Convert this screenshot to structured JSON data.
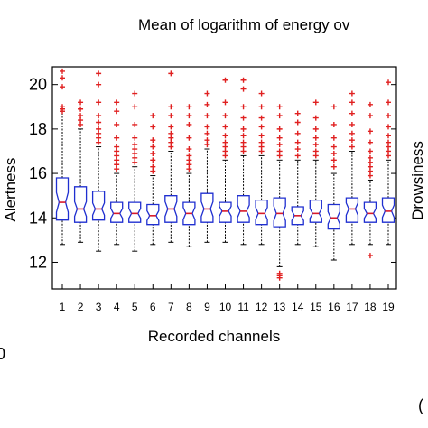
{
  "chart_data": {
    "type": "box",
    "title": "Mean of logarithm of energy ov",
    "xlabel": "Recorded channels",
    "ylabel": "Alertness",
    "right_label": "Drowsiness",
    "categories": [
      "1",
      "2",
      "3",
      "4",
      "5",
      "6",
      "7",
      "8",
      "9",
      "10",
      "11",
      "12",
      "13",
      "14",
      "15",
      "16",
      "17",
      "18",
      "19"
    ],
    "ylim": [
      10.8,
      20.8
    ],
    "yticks": [
      12,
      14,
      16,
      18,
      20
    ],
    "grid": false,
    "box_color": "#1f2fd0",
    "median_color": "#d81a2a",
    "outlier_color": "#e02020",
    "whisker_color": "#000000",
    "boxes": [
      {
        "q1": 13.9,
        "median": 14.7,
        "q3": 15.8,
        "whisker_low": 12.8,
        "whisker_high": 18.8,
        "outliers_high": [
          18.8,
          18.9,
          19.0,
          19.9,
          20.3,
          20.6
        ],
        "outliers_low": []
      },
      {
        "q1": 13.8,
        "median": 14.4,
        "q3": 15.4,
        "whisker_low": 12.9,
        "whisker_high": 18.0,
        "outliers_high": [
          18.2,
          18.4,
          18.6,
          18.9,
          19.2
        ],
        "outliers_low": []
      },
      {
        "q1": 13.9,
        "median": 14.4,
        "q3": 15.2,
        "whisker_low": 12.5,
        "whisker_high": 17.2,
        "outliers_high": [
          17.4,
          17.6,
          17.8,
          18.0,
          18.3,
          18.6,
          19.2,
          20.0,
          20.5
        ],
        "outliers_low": []
      },
      {
        "q1": 13.8,
        "median": 14.2,
        "q3": 14.7,
        "whisker_low": 12.8,
        "whisker_high": 16.0,
        "outliers_high": [
          16.2,
          16.4,
          16.6,
          16.8,
          17.0,
          17.2,
          17.6,
          18.2,
          18.8,
          19.2
        ],
        "outliers_low": []
      },
      {
        "q1": 13.8,
        "median": 14.2,
        "q3": 14.7,
        "whisker_low": 12.5,
        "whisker_high": 16.3,
        "outliers_high": [
          16.5,
          16.7,
          16.9,
          17.1,
          17.3,
          17.6,
          18.2,
          19.0,
          19.6
        ],
        "outliers_low": []
      },
      {
        "q1": 13.7,
        "median": 14.1,
        "q3": 14.6,
        "whisker_low": 12.8,
        "whisker_high": 15.9,
        "outliers_high": [
          16.1,
          16.3,
          16.6,
          16.9,
          17.2,
          17.5,
          18.1,
          18.6
        ],
        "outliers_low": []
      },
      {
        "q1": 13.8,
        "median": 14.4,
        "q3": 15.0,
        "whisker_low": 12.9,
        "whisker_high": 17.0,
        "outliers_high": [
          17.2,
          17.4,
          17.6,
          17.8,
          18.1,
          18.6,
          19.0,
          20.5
        ],
        "outliers_low": []
      },
      {
        "q1": 13.7,
        "median": 14.2,
        "q3": 14.7,
        "whisker_low": 12.7,
        "whisker_high": 16.0,
        "outliers_high": [
          16.2,
          16.4,
          16.6,
          16.8,
          17.1,
          17.6,
          18.2,
          18.6,
          19.0
        ],
        "outliers_low": []
      },
      {
        "q1": 13.8,
        "median": 14.4,
        "q3": 15.1,
        "whisker_low": 12.9,
        "whisker_high": 17.1,
        "outliers_high": [
          17.3,
          17.5,
          17.8,
          18.1,
          18.6,
          19.1,
          19.6
        ],
        "outliers_low": []
      },
      {
        "q1": 13.8,
        "median": 14.3,
        "q3": 14.7,
        "whisker_low": 12.9,
        "whisker_high": 16.6,
        "outliers_high": [
          16.8,
          17.0,
          17.2,
          17.4,
          17.7,
          18.1,
          18.6,
          19.2,
          20.2
        ],
        "outliers_low": []
      },
      {
        "q1": 13.8,
        "median": 14.3,
        "q3": 15.0,
        "whisker_low": 12.8,
        "whisker_high": 16.8,
        "outliers_high": [
          17.0,
          17.2,
          17.4,
          17.7,
          18.0,
          18.5,
          19.0,
          19.8,
          20.2
        ],
        "outliers_low": []
      },
      {
        "q1": 13.7,
        "median": 14.2,
        "q3": 14.8,
        "whisker_low": 12.8,
        "whisker_high": 16.8,
        "outliers_high": [
          17.0,
          17.2,
          17.4,
          17.7,
          18.1,
          18.5,
          19.0,
          19.6
        ],
        "outliers_low": []
      },
      {
        "q1": 13.6,
        "median": 14.2,
        "q3": 14.9,
        "whisker_low": 11.8,
        "whisker_high": 16.6,
        "outliers_high": [
          16.8,
          17.0,
          17.3,
          17.6,
          18.0,
          18.6,
          19.0
        ],
        "outliers_low": [
          11.3,
          11.4,
          11.5
        ]
      },
      {
        "q1": 13.7,
        "median": 14.1,
        "q3": 14.5,
        "whisker_low": 12.8,
        "whisker_high": 16.6,
        "outliers_high": [
          16.8,
          17.1,
          17.4,
          17.8,
          18.3,
          18.7
        ],
        "outliers_low": []
      },
      {
        "q1": 13.8,
        "median": 14.2,
        "q3": 14.8,
        "whisker_low": 12.7,
        "whisker_high": 16.6,
        "outliers_high": [
          16.8,
          17.0,
          17.3,
          17.6,
          18.0,
          18.5,
          19.2
        ],
        "outliers_low": []
      },
      {
        "q1": 13.5,
        "median": 14.0,
        "q3": 14.6,
        "whisker_low": 12.1,
        "whisker_high": 16.0,
        "outliers_high": [
          16.3,
          16.6,
          16.9,
          17.2,
          17.6,
          18.2,
          19.0
        ],
        "outliers_low": []
      },
      {
        "q1": 13.8,
        "median": 14.4,
        "q3": 14.9,
        "whisker_low": 12.8,
        "whisker_high": 17.0,
        "outliers_high": [
          17.2,
          17.5,
          17.8,
          18.2,
          18.7,
          19.2,
          19.6
        ],
        "outliers_low": []
      },
      {
        "q1": 13.8,
        "median": 14.2,
        "q3": 14.7,
        "whisker_low": 12.8,
        "whisker_high": 15.7,
        "outliers_high": [
          15.9,
          16.1,
          16.3,
          16.5,
          16.7,
          17.0,
          17.4,
          17.9,
          18.6,
          19.1
        ],
        "outliers_low": [
          12.3
        ]
      },
      {
        "q1": 13.8,
        "median": 14.3,
        "q3": 14.9,
        "whisker_low": 12.8,
        "whisker_high": 16.6,
        "outliers_high": [
          16.8,
          17.0,
          17.2,
          17.4,
          17.7,
          18.1,
          18.6,
          19.2,
          20.1
        ],
        "outliers_low": []
      }
    ]
  },
  "edge_text": {
    "left_bottom": "0",
    "right_bottom": "("
  }
}
